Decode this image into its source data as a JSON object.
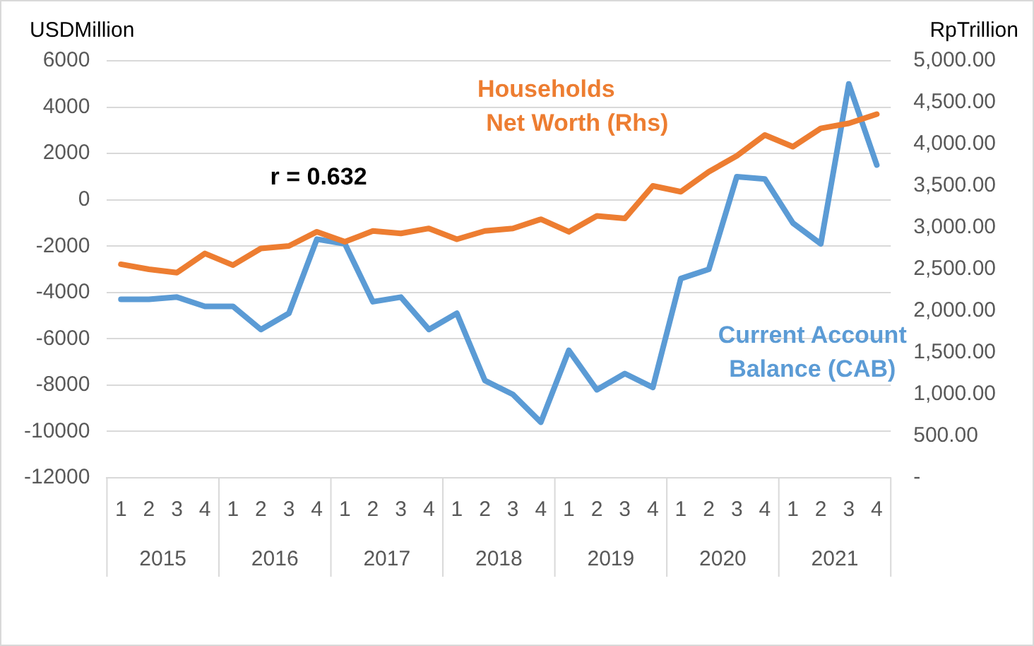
{
  "chart_data": {
    "type": "line",
    "ylabel": "USDMillion",
    "y2label": "RpTrillion",
    "categories": [
      "1",
      "2",
      "3",
      "4",
      "1",
      "2",
      "3",
      "4",
      "1",
      "2",
      "3",
      "4",
      "1",
      "2",
      "3",
      "4",
      "1",
      "2",
      "3",
      "4",
      "1",
      "2",
      "3",
      "4",
      "1",
      "2",
      "3",
      "4"
    ],
    "annotations": [
      "r = 0.632",
      "2015",
      "2016",
      "2017",
      "2018",
      "2019",
      "2020",
      "2021"
    ],
    "series": [
      {
        "name": "Households\nNet Worth (Rhs)",
        "color": "#ed7d31",
        "axis": "y2",
        "values": [
          2560,
          2500,
          2460,
          2690,
          2550,
          2750,
          2780,
          2950,
          2830,
          2960,
          2930,
          2990,
          2860,
          2960,
          2990,
          3100,
          2950,
          3140,
          3110,
          3500,
          3430,
          3670,
          3860,
          4110,
          3970,
          4190,
          4250,
          4360
        ]
      },
      {
        "name": "Current Account\nBalance (CAB)",
        "color": "#5b9bd5",
        "values": [
          -4300,
          -4300,
          -4200,
          -4600,
          -4600,
          -5600,
          -4900,
          -1700,
          -1900,
          -4400,
          -4200,
          -5600,
          -4900,
          -7800,
          -8400,
          -9600,
          -6500,
          -8200,
          -7500,
          -8100,
          -3400,
          -3000,
          1000,
          900,
          -1000,
          -1900,
          5000,
          1500
        ]
      }
    ],
    "ylim": [
      -12000,
      6000
    ],
    "yticks": [
      -12000,
      -10000,
      -8000,
      -6000,
      -4000,
      -2000,
      0,
      2000,
      4000,
      6000
    ],
    "y2lim": [
      0,
      5000
    ],
    "y2ticks": [
      {
        "value": 0,
        "label": "-"
      },
      {
        "value": 500,
        "label": "500.00"
      },
      {
        "value": 1000,
        "label": "1,000.00"
      },
      {
        "value": 1500,
        "label": "1,500.00"
      },
      {
        "value": 2000,
        "label": "2,000.00"
      },
      {
        "value": 2500,
        "label": "2,500.00"
      },
      {
        "value": 3000,
        "label": "3,000.00"
      },
      {
        "value": 3500,
        "label": "3,500.00"
      },
      {
        "value": 4000,
        "label": "4,000.00"
      },
      {
        "value": 4500,
        "label": "4,500.00"
      },
      {
        "value": 5000,
        "label": "5,000.00"
      }
    ],
    "grid": "y",
    "legend": false,
    "marker": "none",
    "line_style": "solid"
  }
}
